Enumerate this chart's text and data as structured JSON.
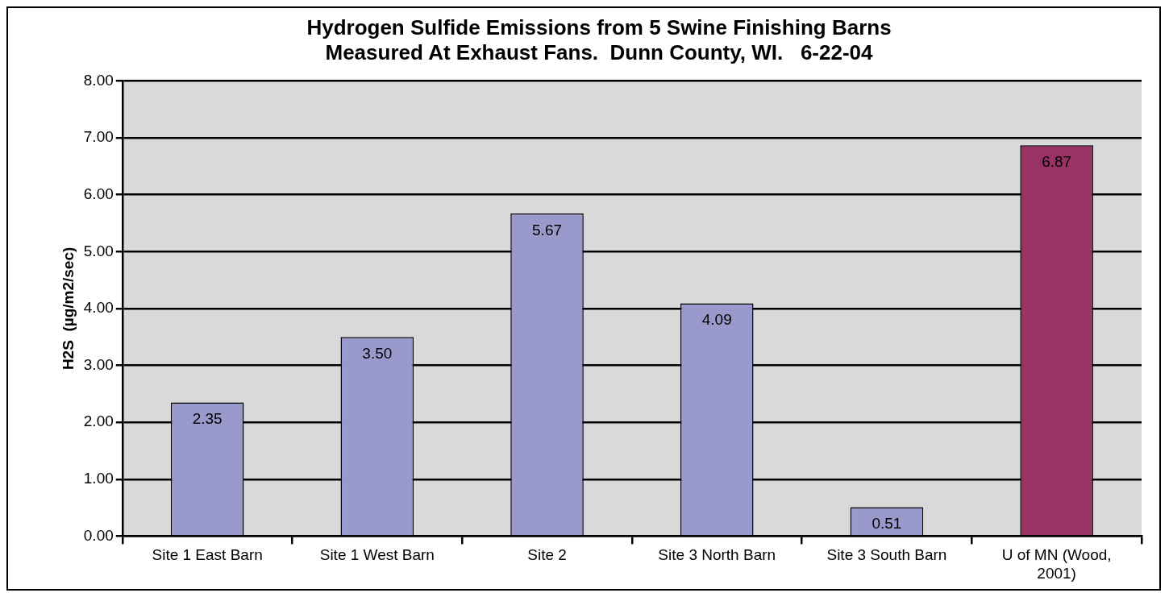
{
  "chart_data": {
    "type": "bar",
    "title": "Hydrogen Sulfide Emissions from 5 Swine Finishing Barns\nMeasured At Exhaust Fans.  Dunn County, WI.   6-22-04",
    "ylabel": "H2S  (µg/m2/sec)",
    "categories": [
      "Site 1 East Barn",
      "Site 1 West Barn",
      "Site 2",
      "Site 3 North Barn",
      "Site 3 South Barn",
      "U of MN (Wood, 2001)"
    ],
    "values": [
      2.35,
      3.5,
      5.67,
      4.09,
      0.51,
      6.87
    ],
    "value_labels": [
      "2.35",
      "3.50",
      "5.67",
      "4.09",
      "0.51",
      "6.87"
    ],
    "colors": [
      "#9999cc",
      "#9999cc",
      "#9999cc",
      "#9999cc",
      "#9999cc",
      "#993366"
    ],
    "ylim": [
      0,
      8
    ],
    "yticks": [
      {
        "value": 0,
        "label": "0.00"
      },
      {
        "value": 1,
        "label": "1.00"
      },
      {
        "value": 2,
        "label": "2.00"
      },
      {
        "value": 3,
        "label": "3.00"
      },
      {
        "value": 4,
        "label": "4.00"
      },
      {
        "value": 5,
        "label": "5.00"
      },
      {
        "value": 6,
        "label": "6.00"
      },
      {
        "value": 7,
        "label": "7.00"
      },
      {
        "value": 8,
        "label": "8.00"
      }
    ],
    "grid": "y",
    "legend": false
  }
}
